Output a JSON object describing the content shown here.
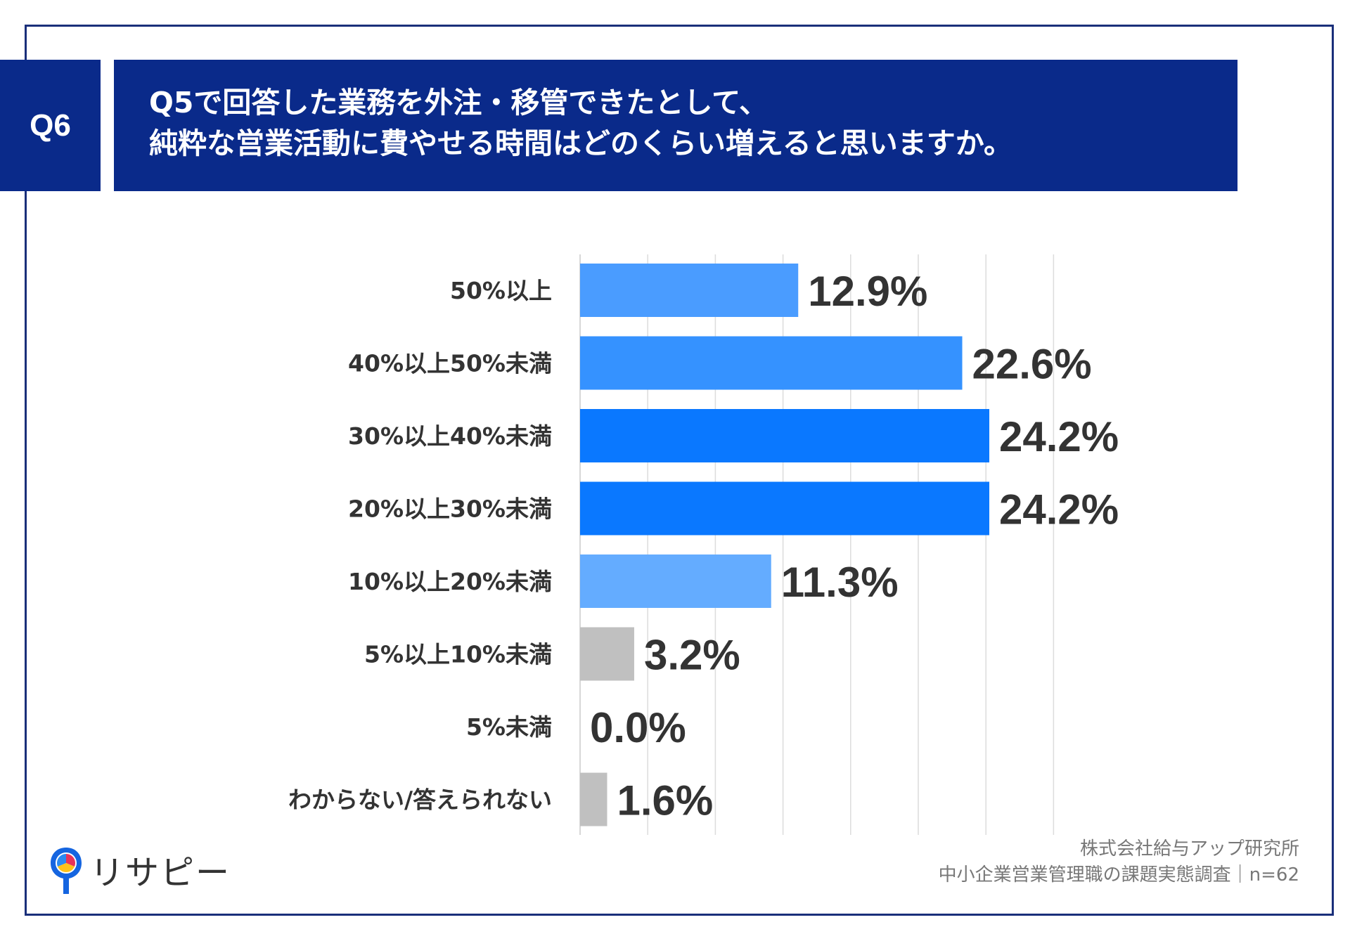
{
  "header": {
    "question_tag": "Q6",
    "title_line1": "Q5で回答した業務を外注・移管できたとして、",
    "title_line2": "純粋な営業活動に費やせる時間はどのくらい増えると思いますか。"
  },
  "chart_data": {
    "type": "bar",
    "orientation": "horizontal",
    "categories": [
      "50%以上",
      "40%以上50%未満",
      "30%以上40%未満",
      "20%以上30%未満",
      "10%以上20%未満",
      "5%以上10%未満",
      "5%未満",
      "わからない/答えられない"
    ],
    "values": [
      12.9,
      22.6,
      24.2,
      24.2,
      11.3,
      3.2,
      0.0,
      1.6
    ],
    "value_labels": [
      "12.9%",
      "22.6%",
      "24.2%",
      "24.2%",
      "11.3%",
      "3.2%",
      "0.0%",
      "1.6%"
    ],
    "bar_colors": [
      "#4a9cff",
      "#3592ff",
      "#0a78ff",
      "#0a78ff",
      "#64acff",
      "#c0c0c0",
      "#c0c0c0",
      "#c0c0c0"
    ],
    "xlim": [
      0,
      30
    ],
    "grid": true
  },
  "footer": {
    "source_line1": "株式会社給与アップ研究所",
    "source_line2": "中小企業営業管理職の課題実態調査｜n=62",
    "logo_text": "リサピー"
  }
}
